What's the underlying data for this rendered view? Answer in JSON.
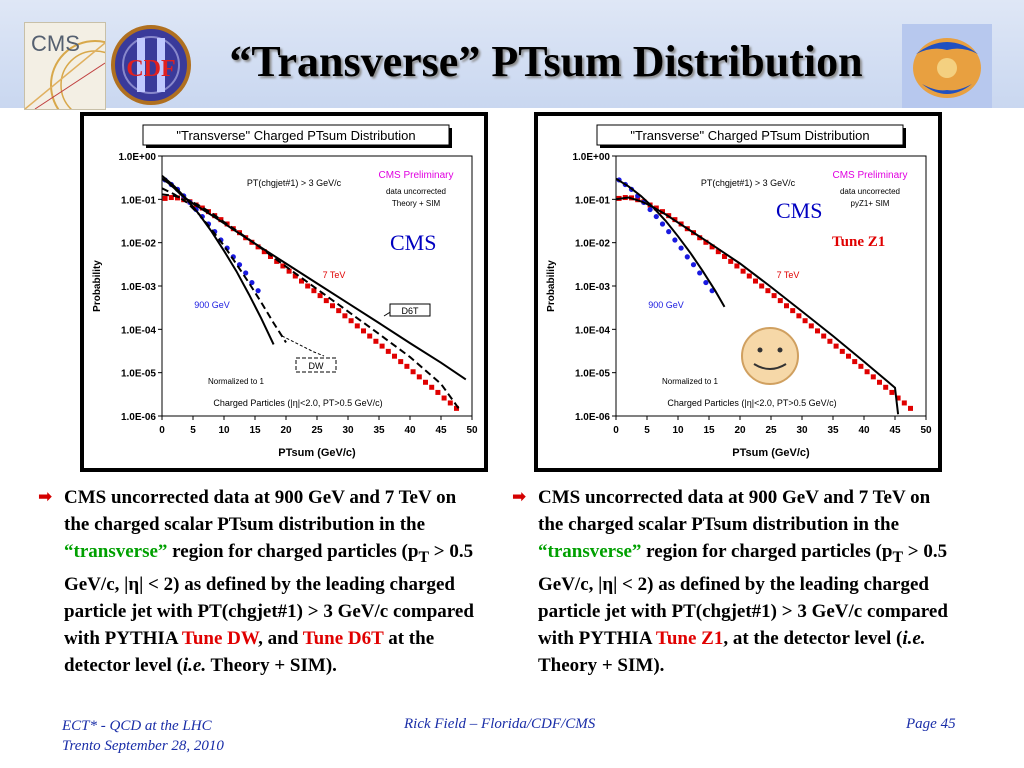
{
  "slide": {
    "title": "“Transverse” PTsum Distribution",
    "logos": {
      "left1": "CMS",
      "left2": "CDF",
      "right": ""
    }
  },
  "colors": {
    "cms_red": "#e00000",
    "cdf_blue": "#1a1ae0",
    "theory_black": "#000000",
    "accent_green": "#00a000",
    "footer_blue": "#1a2ea8"
  },
  "chart_data": [
    {
      "type": "scatter",
      "title": "\"Transverse\" Charged PTsum Distribution",
      "xlabel": "PTsum (GeV/c)",
      "ylabel": "Probability",
      "xlim": [
        0,
        50
      ],
      "ylim": [
        1e-06,
        1
      ],
      "yscale": "log",
      "x_ticks": [
        "0",
        "5",
        "10",
        "15",
        "20",
        "25",
        "30",
        "35",
        "40",
        "45",
        "50"
      ],
      "y_ticks": [
        "1.0E+00",
        "1.0E-01",
        "1.0E-02",
        "1.0E-03",
        "1.0E-04",
        "1.0E-05",
        "1.0E-06"
      ],
      "annotations": {
        "cut": "PT(chgjet#1) > 3 GeV/c",
        "prelim": "CMS Preliminary",
        "note1": "data uncorrected",
        "note2": "Theory + SIM",
        "big": "CMS",
        "tune_label": "",
        "normalized": "Normalized to 1",
        "particles": "Charged Particles (|η|<2.0, PT>0.5 GeV/c)",
        "label_7tev": "7 TeV",
        "label_900": "900 GeV",
        "box_a": "D6T",
        "box_b": "DW"
      },
      "series": [
        {
          "name": "7 TeV",
          "color": "#e00000",
          "x": [
            0.5,
            1.5,
            2.5,
            3.5,
            4.5,
            5.5,
            6.5,
            7.5,
            8.5,
            9.5,
            10.5,
            11.5,
            12.5,
            13.5,
            14.5,
            15.5,
            16.5,
            17.5,
            18.5,
            19.5,
            20.5,
            21.5,
            22.5,
            23.5,
            24.5,
            25.5,
            26.5,
            27.5,
            28.5,
            29.5,
            30.5,
            31.5,
            32.5,
            33.5,
            34.5,
            35.5,
            36.5,
            37.5,
            38.5,
            39.5,
            40.5,
            41.5,
            42.5,
            43.5,
            44.5,
            45.5,
            46.5,
            47.5
          ],
          "y": [
            0.105,
            0.11,
            0.108,
            0.098,
            0.088,
            0.074,
            0.063,
            0.052,
            0.042,
            0.034,
            0.027,
            0.021,
            0.017,
            0.013,
            0.0102,
            0.008,
            0.0062,
            0.0048,
            0.0037,
            0.0029,
            0.0022,
            0.0017,
            0.0013,
            0.001,
            0.00078,
            0.0006,
            0.00046,
            0.00035,
            0.00027,
            0.000205,
            0.000158,
            0.00012,
            9.2e-05,
            7e-05,
            5.3e-05,
            4.1e-05,
            3.1e-05,
            2.4e-05,
            1.8e-05,
            1.4e-05,
            1.05e-05,
            8e-06,
            6e-06,
            4.6e-06,
            3.5e-06,
            2.6e-06,
            2e-06,
            1.5e-06
          ]
        },
        {
          "name": "900 GeV",
          "color": "#1a1ae0",
          "x": [
            0.5,
            1.5,
            2.5,
            3.5,
            4.5,
            5.5,
            6.5,
            7.5,
            8.5,
            9.5,
            10.5,
            11.5,
            12.5,
            13.5,
            14.5,
            15.5
          ],
          "y": [
            0.28,
            0.22,
            0.17,
            0.12,
            0.085,
            0.058,
            0.04,
            0.027,
            0.018,
            0.0115,
            0.0075,
            0.0047,
            0.0031,
            0.002,
            0.0012,
            0.00078
          ]
        },
        {
          "name": "D6T",
          "color": "#000000",
          "style": "solid",
          "x": [
            0,
            1,
            2,
            3,
            4,
            5,
            6,
            8,
            10,
            12,
            15,
            20,
            25,
            30,
            35,
            40,
            45,
            49
          ],
          "y": [
            0.3,
            0.24,
            0.18,
            0.13,
            0.1,
            0.08,
            0.065,
            0.043,
            0.028,
            0.018,
            0.0095,
            0.0033,
            0.00115,
            0.0004,
            0.00014,
            4.8e-05,
            1.7e-05,
            7e-06
          ]
        },
        {
          "name": "DW",
          "color": "#000000",
          "style": "dashed",
          "x": [
            0,
            2,
            4,
            6,
            8,
            10,
            12,
            15,
            20,
            25,
            30,
            35,
            40,
            45,
            48
          ],
          "y": [
            0.13,
            0.12,
            0.1,
            0.072,
            0.048,
            0.03,
            0.019,
            0.0095,
            0.0028,
            0.00085,
            0.00026,
            7.8e-05,
            2.3e-05,
            5.5e-06,
            1.4e-06
          ]
        },
        {
          "name": "900 GeV D6T",
          "color": "#000000",
          "style": "solid",
          "x": [
            0,
            2,
            4,
            6,
            8,
            10,
            12,
            14,
            16,
            18
          ],
          "y": [
            0.35,
            0.2,
            0.1,
            0.045,
            0.018,
            0.0065,
            0.0022,
            0.00065,
            0.00018,
            4.5e-05
          ]
        },
        {
          "name": "900 GeV DW",
          "color": "#000000",
          "style": "dashed",
          "x": [
            0,
            2,
            4,
            6,
            8,
            10,
            12,
            14,
            16,
            18,
            20
          ],
          "y": [
            0.18,
            0.13,
            0.085,
            0.045,
            0.02,
            0.0085,
            0.0032,
            0.0012,
            0.00042,
            0.00014,
            5e-05
          ]
        }
      ]
    },
    {
      "type": "scatter",
      "title": "\"Transverse\" Charged PTsum Distribution",
      "xlabel": "PTsum (GeV/c)",
      "ylabel": "Probability",
      "xlim": [
        0,
        50
      ],
      "ylim": [
        1e-06,
        1
      ],
      "yscale": "log",
      "x_ticks": [
        "0",
        "5",
        "10",
        "15",
        "20",
        "25",
        "30",
        "35",
        "40",
        "45",
        "50"
      ],
      "y_ticks": [
        "1.0E+00",
        "1.0E-01",
        "1.0E-02",
        "1.0E-03",
        "1.0E-04",
        "1.0E-05",
        "1.0E-06"
      ],
      "annotations": {
        "cut": "PT(chgjet#1) > 3 GeV/c",
        "prelim": "CMS Preliminary",
        "note1": "data uncorrected",
        "note2": "pyZ1+ SIM",
        "big": "CMS",
        "tune_label": "Tune Z1",
        "normalized": "Normalized to 1",
        "particles": "Charged Particles (|η|<2.0, PT>0.5 GeV/c)",
        "label_7tev": "7 TeV",
        "label_900": "900 GeV",
        "box_a": "",
        "box_b": ""
      },
      "series": [
        {
          "name": "7 TeV",
          "color": "#e00000",
          "x": [
            0.5,
            1.5,
            2.5,
            3.5,
            4.5,
            5.5,
            6.5,
            7.5,
            8.5,
            9.5,
            10.5,
            11.5,
            12.5,
            13.5,
            14.5,
            15.5,
            16.5,
            17.5,
            18.5,
            19.5,
            20.5,
            21.5,
            22.5,
            23.5,
            24.5,
            25.5,
            26.5,
            27.5,
            28.5,
            29.5,
            30.5,
            31.5,
            32.5,
            33.5,
            34.5,
            35.5,
            36.5,
            37.5,
            38.5,
            39.5,
            40.5,
            41.5,
            42.5,
            43.5,
            44.5,
            45.5,
            46.5,
            47.5
          ],
          "y": [
            0.105,
            0.11,
            0.108,
            0.098,
            0.088,
            0.074,
            0.063,
            0.052,
            0.042,
            0.034,
            0.027,
            0.021,
            0.017,
            0.013,
            0.0102,
            0.008,
            0.0062,
            0.0048,
            0.0037,
            0.0029,
            0.0022,
            0.0017,
            0.0013,
            0.001,
            0.00078,
            0.0006,
            0.00046,
            0.00035,
            0.00027,
            0.000205,
            0.000158,
            0.00012,
            9.2e-05,
            7e-05,
            5.3e-05,
            4.1e-05,
            3.1e-05,
            2.4e-05,
            1.8e-05,
            1.4e-05,
            1.05e-05,
            8e-06,
            6e-06,
            4.6e-06,
            3.5e-06,
            2.6e-06,
            2e-06,
            1.5e-06
          ]
        },
        {
          "name": "900 GeV",
          "color": "#1a1ae0",
          "x": [
            0.5,
            1.5,
            2.5,
            3.5,
            4.5,
            5.5,
            6.5,
            7.5,
            8.5,
            9.5,
            10.5,
            11.5,
            12.5,
            13.5,
            14.5,
            15.5
          ],
          "y": [
            0.28,
            0.22,
            0.17,
            0.12,
            0.085,
            0.058,
            0.04,
            0.027,
            0.018,
            0.0115,
            0.0075,
            0.0047,
            0.0031,
            0.002,
            0.0012,
            0.00078
          ]
        },
        {
          "name": "Tune Z1 7 TeV",
          "color": "#000000",
          "style": "solid",
          "x": [
            0,
            1,
            2,
            3,
            4,
            5,
            6,
            8,
            10,
            12,
            15,
            20,
            25,
            30,
            35,
            40,
            45,
            45.5
          ],
          "y": [
            0.1,
            0.105,
            0.11,
            0.1,
            0.09,
            0.078,
            0.066,
            0.045,
            0.029,
            0.019,
            0.01,
            0.0033,
            0.00095,
            0.00026,
            7e-05,
            1.8e-05,
            4.5e-06,
            1.1e-06
          ]
        },
        {
          "name": "Tune Z1 900 GeV",
          "color": "#000000",
          "style": "solid",
          "x": [
            0,
            2,
            4,
            6,
            8,
            10,
            12,
            14,
            16,
            17.5
          ],
          "y": [
            0.3,
            0.2,
            0.12,
            0.065,
            0.032,
            0.014,
            0.0058,
            0.0022,
            0.00078,
            0.00033
          ]
        }
      ]
    }
  ],
  "bullets": {
    "left": {
      "p1": "CMS uncorrected data at 900 GeV and 7 TeV on the charged scalar PTsum distribution in the ",
      "transverse": "“transverse”",
      "p2": " region for charged particles (p",
      "sub": "T",
      "p3": " > 0.5 GeV/c, |η| < 2) as defined by the leading charged particle jet with PT(chgjet#1) > 3 GeV/c compared with PYTHIA ",
      "tune1": "Tune DW",
      "mid": ", and ",
      "tune2": "Tune D6T",
      "p4": " at the detector level (",
      "ie": "i.e.",
      "p5": " Theory + SIM)."
    },
    "right": {
      "p1": "CMS uncorrected data at 900 GeV and 7 TeV on the charged scalar PTsum distribution in the ",
      "transverse": "“transverse”",
      "p2": " region for charged particles (p",
      "sub": "T",
      "p3": " > 0.5 GeV/c, |η| < 2) as defined by the leading charged particle jet with PT(chgjet#1) > 3 GeV/c compared with PYTHIA ",
      "tune1": "Tune Z1",
      "p4": ", at the detector level (",
      "ie": "i.e.",
      "p5": " Theory + SIM)."
    }
  },
  "footer": {
    "left1": "ECT* - QCD at the LHC",
    "left2": "Trento  September 28, 2010",
    "center": "Rick Field – Florida/CDF/CMS",
    "right": "Page 45"
  }
}
